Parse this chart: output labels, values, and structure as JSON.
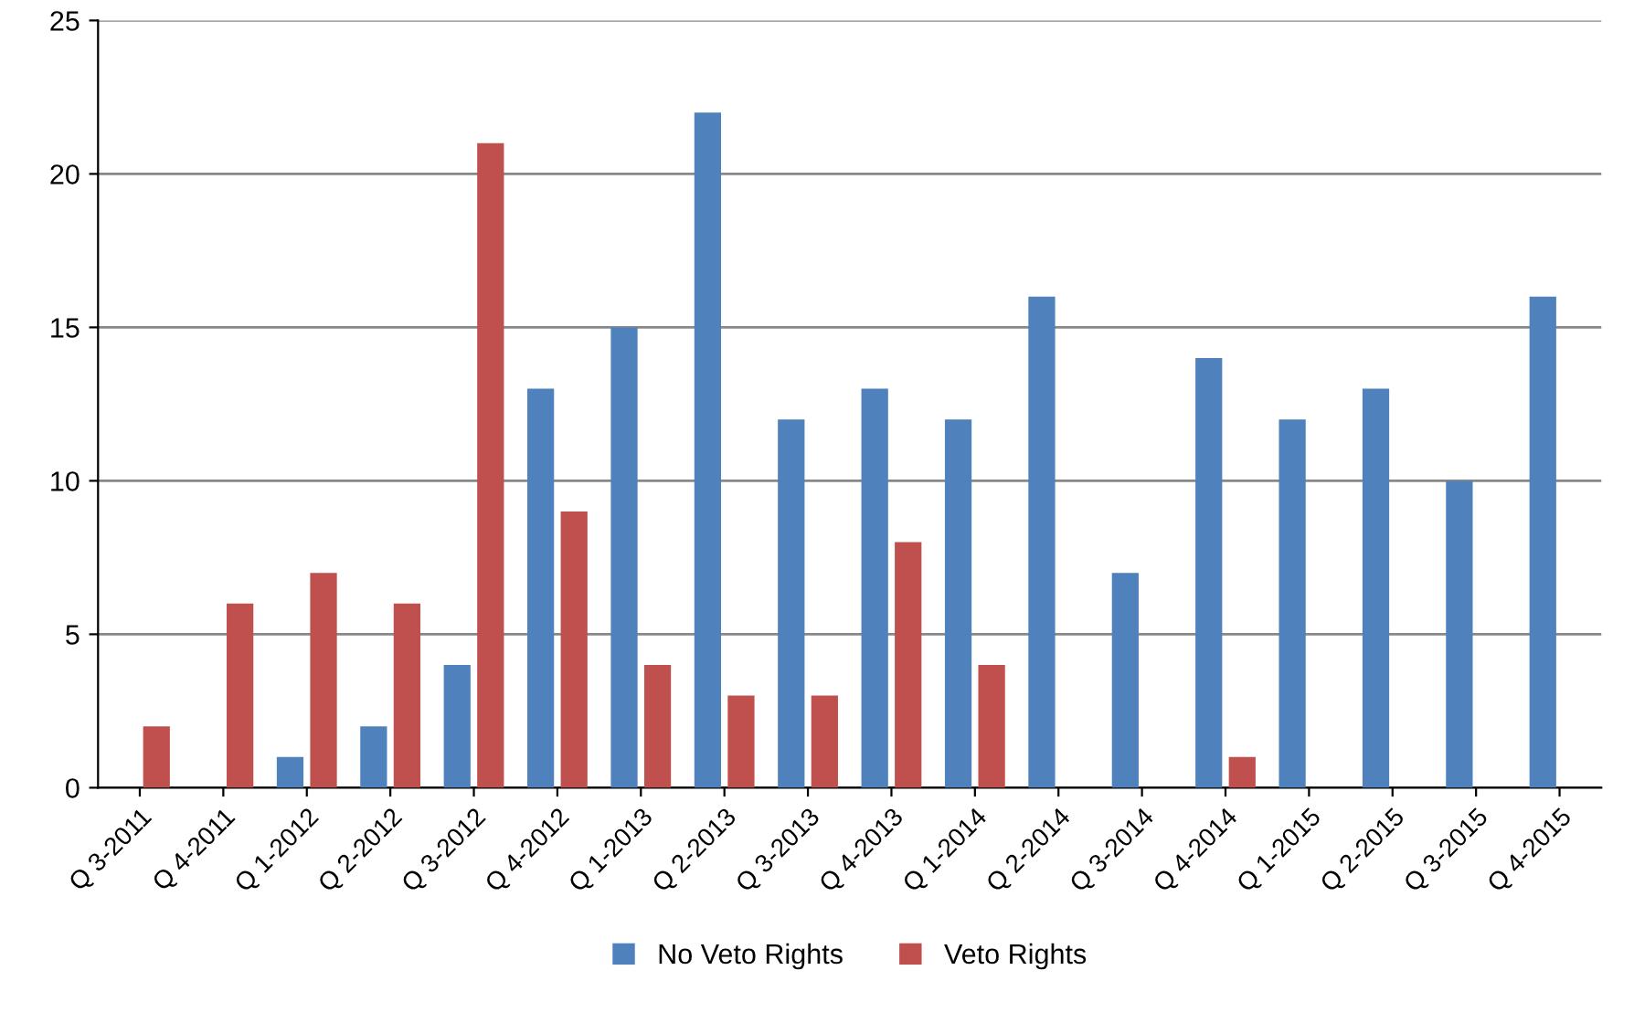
{
  "chart_data": {
    "type": "bar",
    "categories": [
      "Q 3-2011",
      "Q 4-2011",
      "Q 1-2012",
      "Q 2-2012",
      "Q 3-2012",
      "Q 4-2012",
      "Q 1-2013",
      "Q 2-2013",
      "Q 3-2013",
      "Q 4-2013",
      "Q 1-2014",
      "Q 2-2014",
      "Q 3-2014",
      "Q 4-2014",
      "Q 1-2015",
      "Q 2-2015",
      "Q 3-2015",
      "Q 4-2015"
    ],
    "series": [
      {
        "name": "No Veto Rights",
        "color": "#4f81bd",
        "values": [
          0,
          0,
          1,
          2,
          4,
          13,
          15,
          22,
          12,
          13,
          12,
          16,
          7,
          14,
          12,
          13,
          10,
          16
        ]
      },
      {
        "name": "Veto Rights",
        "color": "#c0504d",
        "values": [
          2,
          6,
          7,
          6,
          21,
          9,
          4,
          3,
          3,
          8,
          4,
          0,
          0,
          1,
          0,
          0,
          0,
          0
        ]
      }
    ],
    "ylim": [
      0,
      25
    ],
    "yticks": [
      0,
      5,
      10,
      15,
      20,
      25
    ],
    "grid": "y",
    "legend": "bottom"
  }
}
